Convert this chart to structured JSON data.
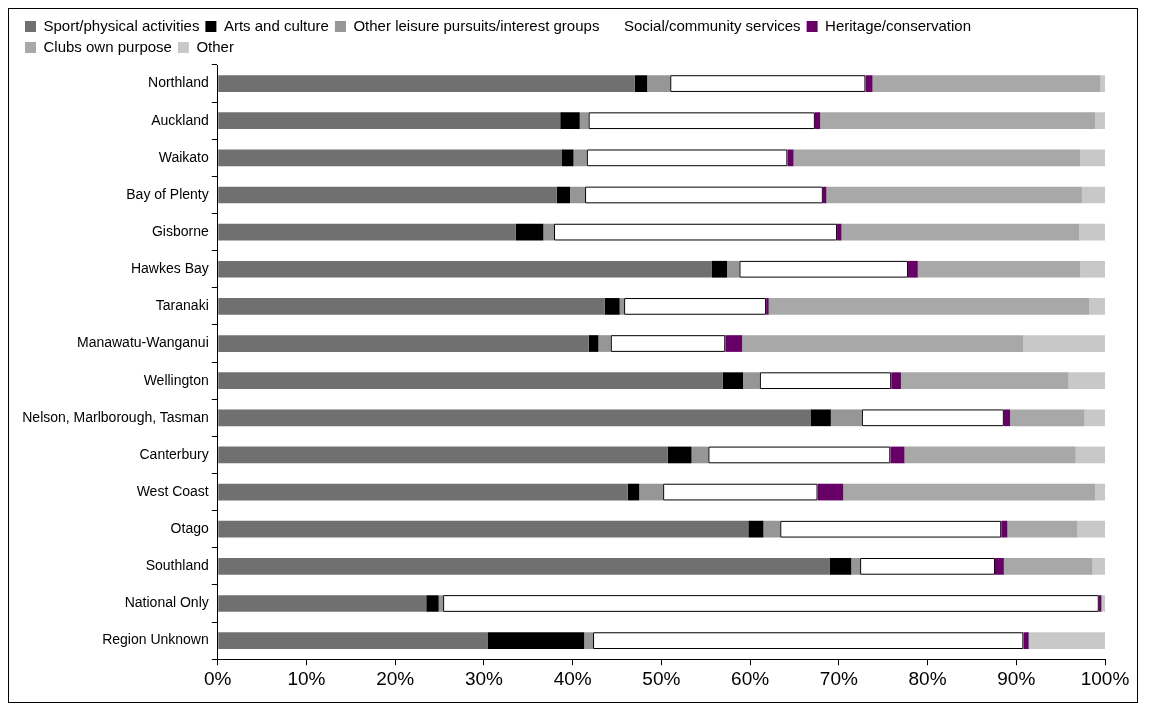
{
  "chart_data": {
    "type": "bar",
    "orientation": "horizontal",
    "stacked": true,
    "grid": false,
    "legend": "top",
    "categories": [
      "Northland",
      "Auckland",
      "Waikato",
      "Bay of Plenty",
      "Gisborne",
      "Hawkes Bay",
      "Taranaki",
      "Manawatu-Wanganui",
      "Wellington",
      "Nelson, Marlborough, Tasman",
      "Canterbury",
      "West Coast",
      "Otago",
      "Southland",
      "National Only",
      "Region Unknown"
    ],
    "xlim": [
      0,
      100
    ],
    "xticks": [
      {
        "value": 0,
        "label": "0%"
      },
      {
        "value": 10,
        "label": "10%"
      },
      {
        "value": 20,
        "label": "20%"
      },
      {
        "value": 30,
        "label": "30%"
      },
      {
        "value": 40,
        "label": "40%"
      },
      {
        "value": 50,
        "label": "50%"
      },
      {
        "value": 60,
        "label": "60%"
      },
      {
        "value": 70,
        "label": "70%"
      },
      {
        "value": 80,
        "label": "80%"
      },
      {
        "value": 90,
        "label": "90%"
      },
      {
        "value": 100,
        "label": "100%"
      }
    ],
    "series": [
      {
        "name": "Sport/physical activities",
        "color": "#707070",
        "values": [
          47,
          38.6,
          38.8,
          38.2,
          33.6,
          55.7,
          43.6,
          41.8,
          56.9,
          66.8,
          50.7,
          46.2,
          59.8,
          69,
          23.5,
          30.4
        ]
      },
      {
        "name": "Arts and culture",
        "color": "#000000",
        "values": [
          1.4,
          2.2,
          1.3,
          1.5,
          3.1,
          1.7,
          1.7,
          1.1,
          2.3,
          2.3,
          2.7,
          1.3,
          1.7,
          2.4,
          1.4,
          10.9
        ]
      },
      {
        "name": "Other leisure pursuits/interest groups",
        "color": "#969696",
        "values": [
          2.6,
          1,
          1.5,
          1.7,
          1.2,
          1.4,
          0.5,
          1.4,
          1.9,
          3.5,
          1.9,
          2.7,
          1.9,
          1,
          0.5,
          1
        ]
      },
      {
        "name": "Social/community services",
        "color": "#ffffff",
        "values": [
          22,
          25.5,
          22.6,
          26.8,
          31.9,
          19,
          16,
          12.9,
          14.8,
          16,
          20.5,
          17.4,
          24.9,
          15.2,
          73.9,
          48.5
        ]
      },
      {
        "name": "Heritage/conservation",
        "color": "#660066",
        "values": [
          0.8,
          0.6,
          0.7,
          0.4,
          0.5,
          1.1,
          0.3,
          1.9,
          1.1,
          0.7,
          1.6,
          2.9,
          0.7,
          1,
          0.3,
          0.6
        ]
      },
      {
        "name": "Clubs own purpose",
        "color": "#a8a8a8",
        "values": [
          25.7,
          31,
          32.3,
          28.8,
          26.8,
          18.3,
          36.1,
          31.7,
          18.9,
          8.4,
          19.3,
          28.4,
          7.9,
          10,
          0,
          0
        ]
      },
      {
        "name": "Other",
        "color": "#c8c8c8",
        "values": [
          0.5,
          1.1,
          2.8,
          2.6,
          2.9,
          2.8,
          1.8,
          9.2,
          4.1,
          2.3,
          3.3,
          1.1,
          3.1,
          1.4,
          0.4,
          8.6
        ]
      }
    ]
  }
}
